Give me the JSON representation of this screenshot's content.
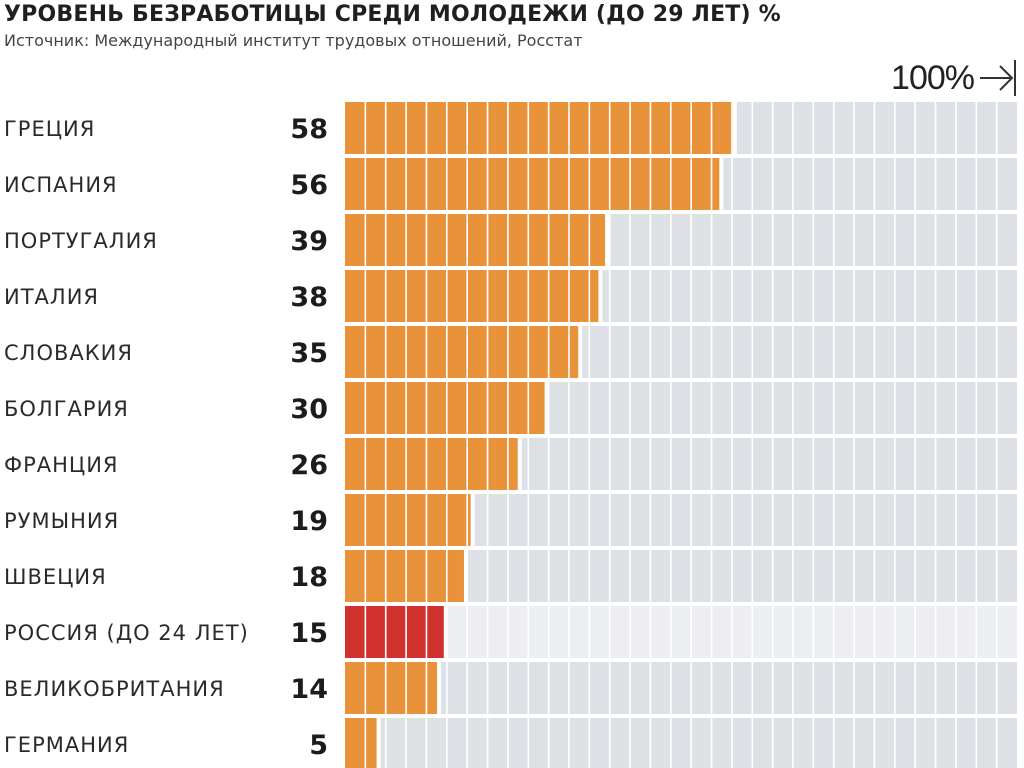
{
  "header": {
    "title": "УРОВЕНЬ БЕЗРАБОТИЦЫ СРЕДИ МОЛОДЕЖИ (ДО 29 ЛЕТ) %",
    "subtitle": "Источник: Международный институт трудовых отношений, Росстат",
    "scale_label": "100%"
  },
  "colors": {
    "bar": "#e8923a",
    "highlight": "#d0312d",
    "track": "#dde1e6",
    "track_highlight": "#eceef1"
  },
  "chart_data": {
    "type": "bar",
    "orientation": "horizontal",
    "title": "УРОВЕНЬ БЕЗРАБОТИЦЫ СРЕДИ МОЛОДЕЖИ (ДО 29 ЛЕТ) %",
    "subtitle": "Источник: Международный институт трудовых отношений, Росстат",
    "xlim": [
      0,
      100
    ],
    "max_label": "100%",
    "categories": [
      "ГРЕЦИЯ",
      "ИСПАНИЯ",
      "ПОРТУГАЛИЯ",
      "ИТАЛИЯ",
      "СЛОВАКИЯ",
      "БОЛГАРИЯ",
      "ФРАНЦИЯ",
      "РУМЫНИЯ",
      "ШВЕЦИЯ",
      "РОССИЯ (ДО 24 ЛЕТ)",
      "ВЕЛИКОБРИТАНИЯ",
      "ГЕРМАНИЯ"
    ],
    "values": [
      58,
      56,
      39,
      38,
      35,
      30,
      26,
      19,
      18,
      15,
      14,
      5
    ],
    "highlight_category": "РОССИЯ (ДО 24 ЛЕТ)",
    "grid": true
  }
}
